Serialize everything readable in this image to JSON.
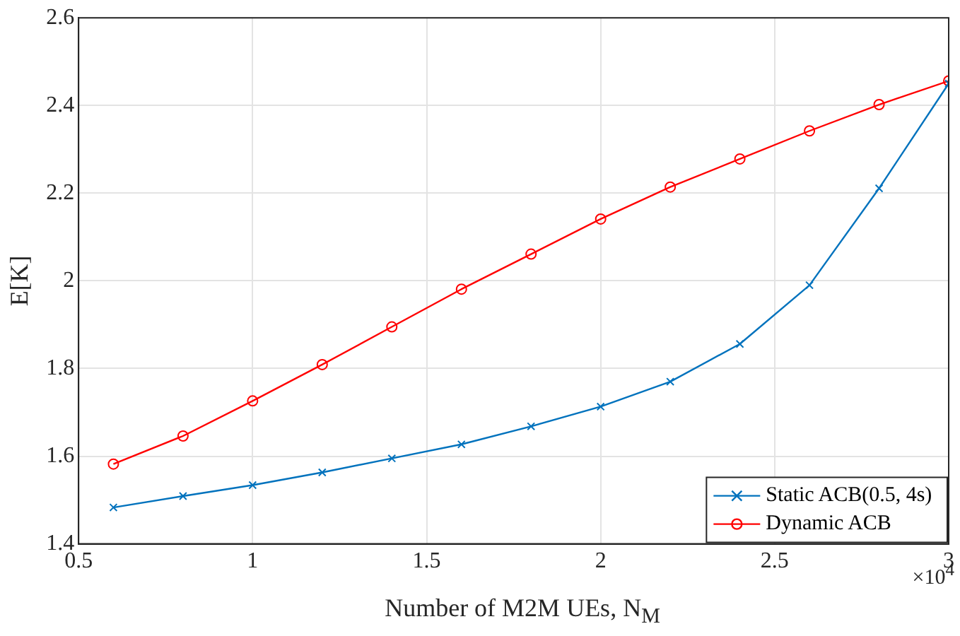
{
  "chart_data": {
    "type": "line",
    "xlabel": "Number of M2M UEs, N$_{M}$",
    "ylabel": "E[K]",
    "annotations": [
      "×10$^{4}$"
    ],
    "x": [
      0.6,
      0.8,
      1,
      1.2,
      1.4,
      1.6,
      1.8,
      2,
      2.2,
      2.4,
      2.6,
      2.8,
      3
    ],
    "series": [
      {
        "name": "Static ACB(0.5, 4s)",
        "color": "#0072bd",
        "marker": "cross",
        "values": [
          1.483,
          1.509,
          1.534,
          1.563,
          1.595,
          1.627,
          1.668,
          1.713,
          1.77,
          1.856,
          1.99,
          2.211,
          2.45
        ]
      },
      {
        "name": "Dynamic ACB",
        "color": "#ff0000",
        "marker": "circle",
        "values": [
          1.582,
          1.646,
          1.726,
          1.809,
          1.895,
          1.981,
          2.061,
          2.141,
          2.214,
          2.278,
          2.342,
          2.402,
          2.456
        ]
      }
    ],
    "xlim": [
      0.5,
      3
    ],
    "xticks": [
      0.5,
      1,
      1.5,
      2,
      2.5,
      3
    ],
    "ylim": [
      1.4,
      2.6
    ],
    "yticks": [
      1.4,
      1.6,
      1.8,
      2,
      2.2,
      2.4,
      2.6
    ],
    "grid": true,
    "legend": "bottom right",
    "line_style": "solid"
  }
}
